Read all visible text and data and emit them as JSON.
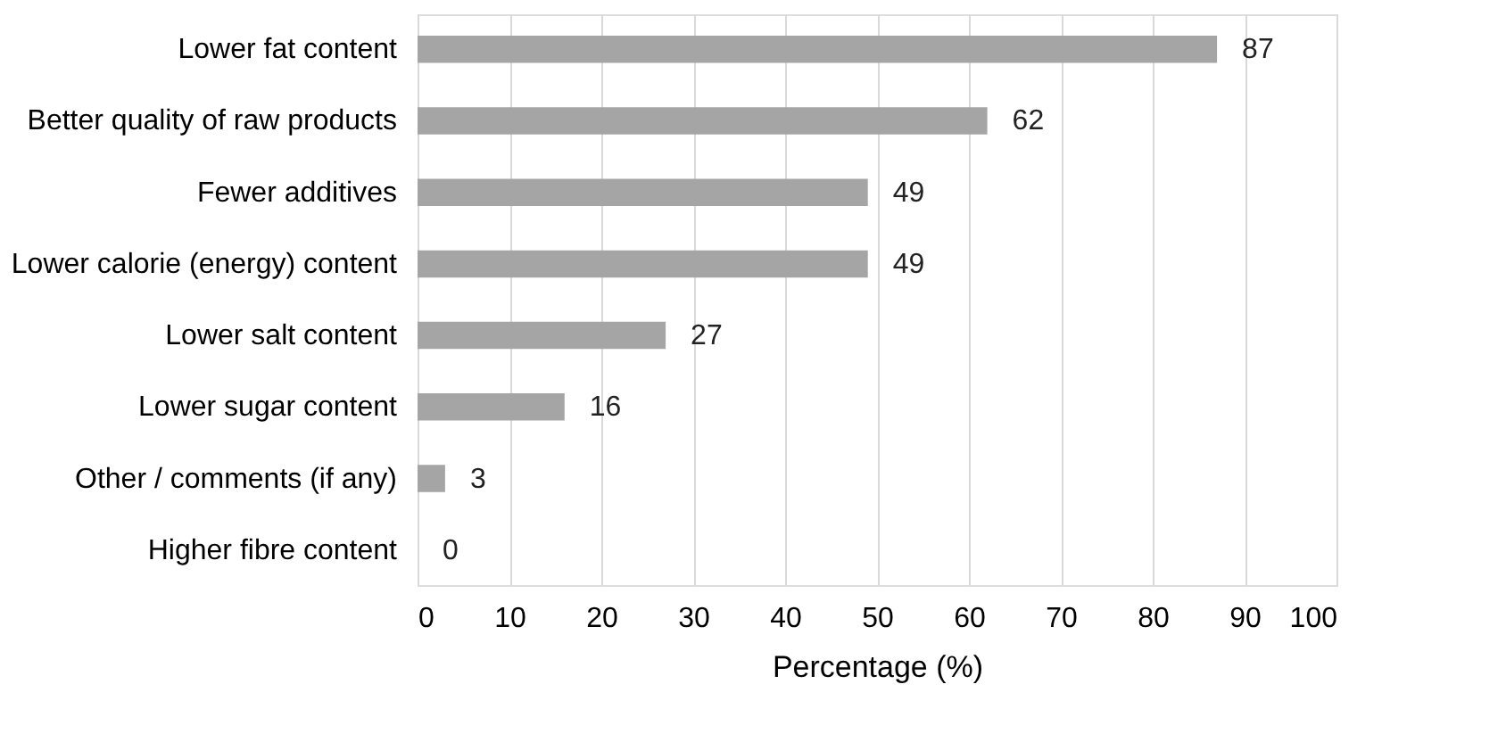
{
  "chart_data": {
    "type": "bar",
    "orientation": "horizontal",
    "xlabel": "Percentage (%)",
    "categories": [
      "Lower fat content",
      "Better quality of raw products",
      "Fewer additives",
      "Lower calorie (energy) content",
      "Lower salt content",
      "Lower sugar content",
      "Other / comments (if any)",
      "Higher fibre content"
    ],
    "values": [
      87,
      62,
      49,
      49,
      27,
      16,
      3,
      0
    ],
    "color": "#a5a5a5",
    "xlim": [
      0,
      100
    ],
    "xticks": [
      0,
      10,
      20,
      30,
      40,
      50,
      60,
      70,
      80,
      90,
      100
    ],
    "grid": "x",
    "data_labels": true
  }
}
